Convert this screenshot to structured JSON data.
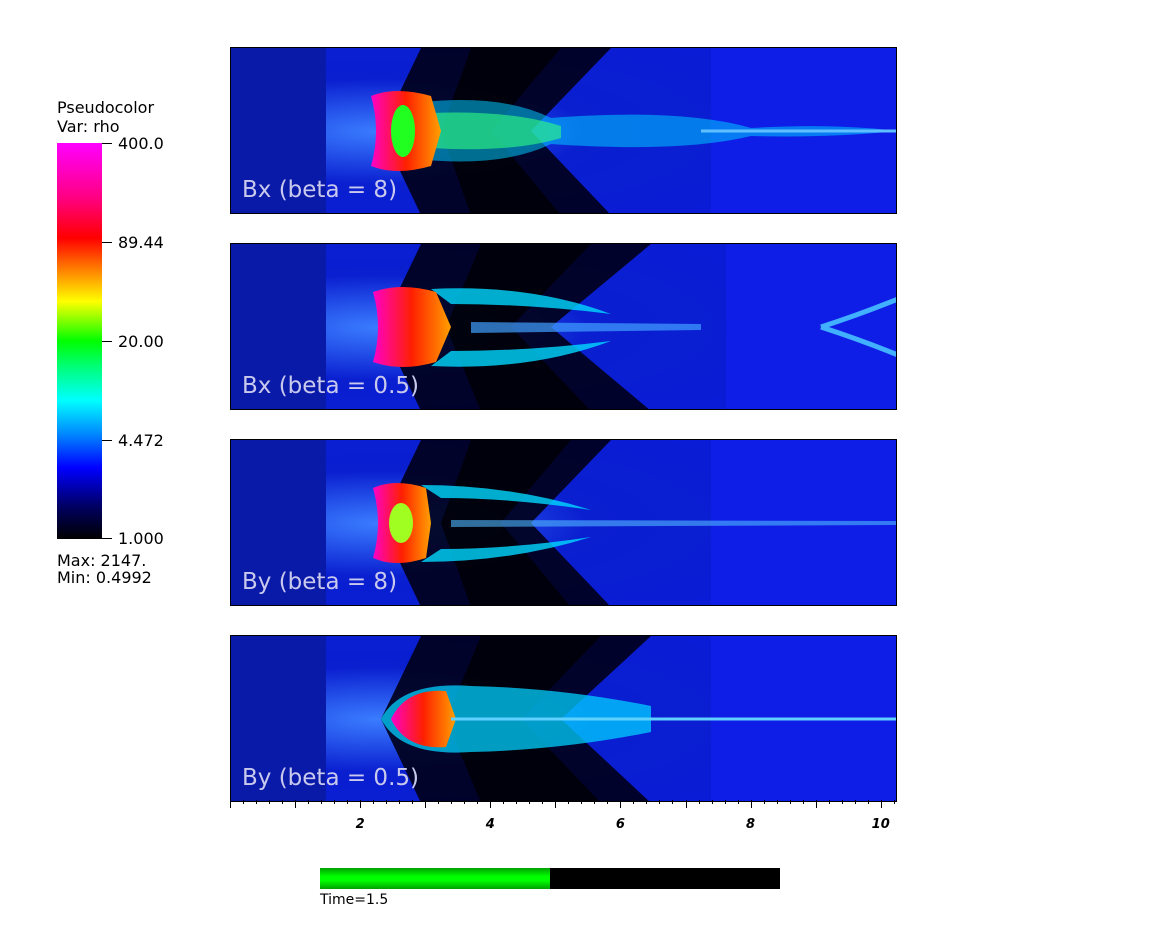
{
  "legend": {
    "title_line1": "Pseudocolor",
    "title_line2": "Var: rho",
    "ticks": [
      "400.0",
      "89.44",
      "20.00",
      "4.472",
      "1.000"
    ],
    "max_label": "Max:  2147.",
    "min_label": "Min:  0.4992",
    "colors": [
      "#ff00ff",
      "#ff0000",
      "#ffff00",
      "#00ff00",
      "#00ffff",
      "#0000ff",
      "#000000"
    ]
  },
  "panels": [
    {
      "label": "Bx (beta = 8)"
    },
    {
      "label": "Bx (beta = 0.5)"
    },
    {
      "label": "By (beta = 8)"
    },
    {
      "label": "By (beta = 0.5)"
    }
  ],
  "axis": {
    "labels": [
      "2",
      "4",
      "6",
      "8",
      "10"
    ],
    "range": [
      0,
      10.25
    ]
  },
  "time": {
    "label": "Time=1.5",
    "progress": 0.5
  }
}
